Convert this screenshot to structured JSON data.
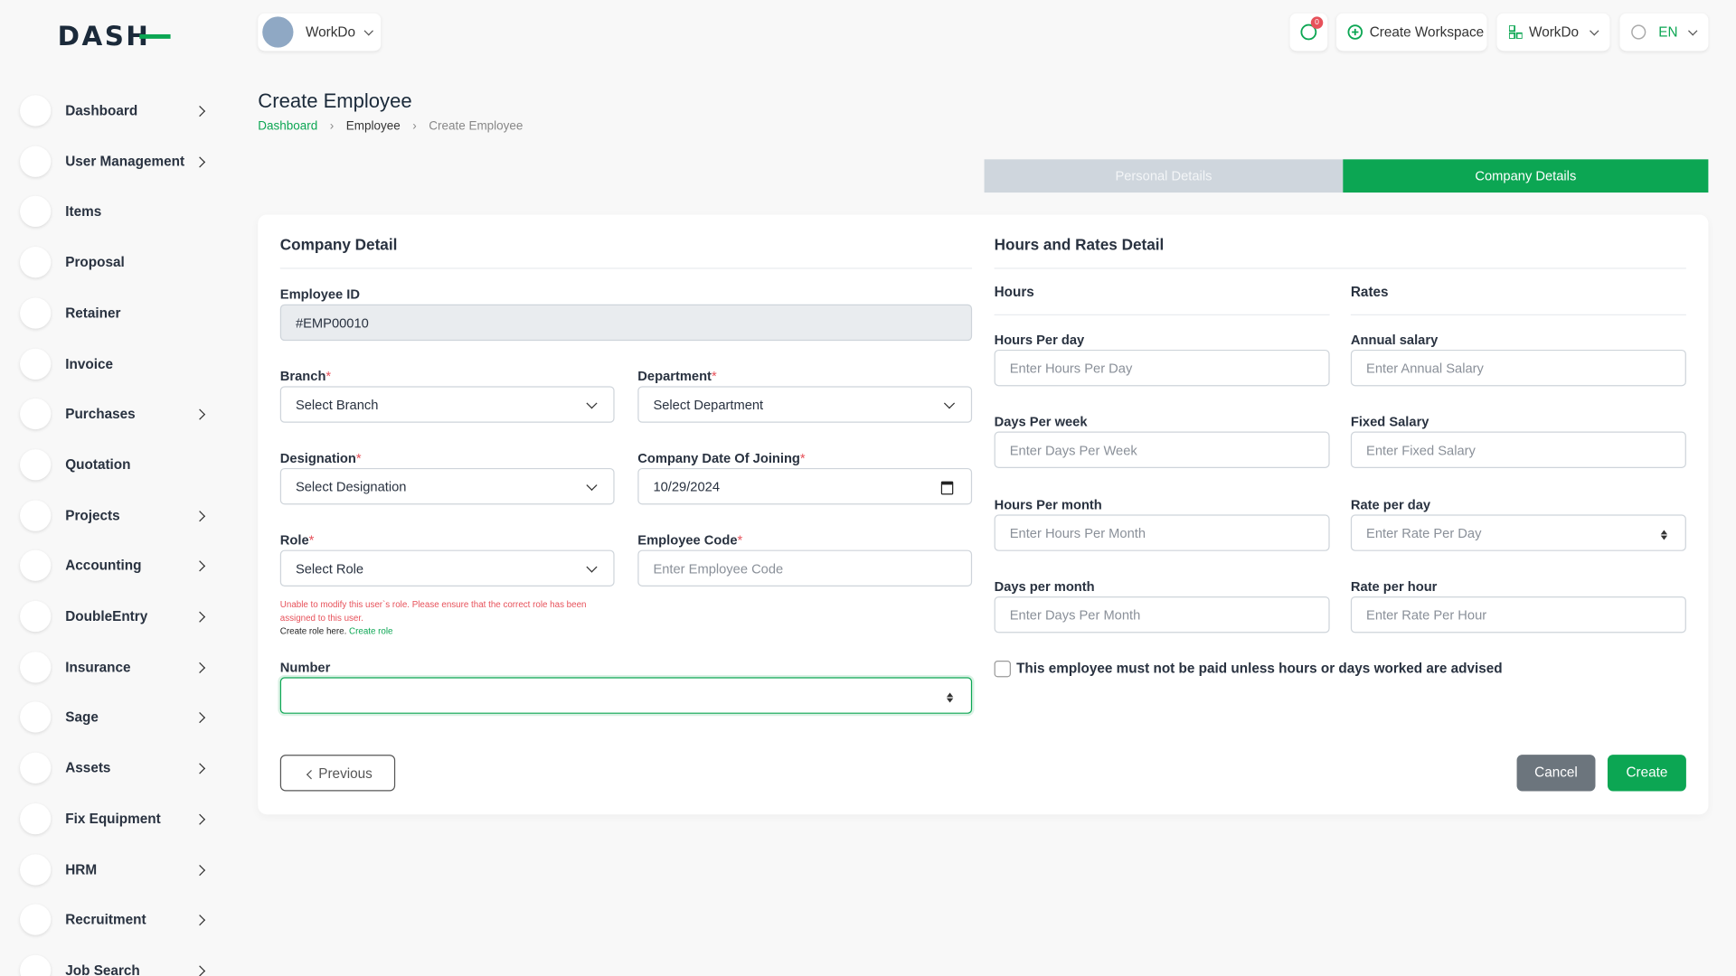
{
  "header": {
    "logo": "DASH",
    "workspace": "WorkDo",
    "notification_count": "0",
    "create_workspace": "Create Workspace",
    "user": "WorkDo",
    "language": "EN"
  },
  "sidebar": {
    "items": [
      {
        "label": "Dashboard",
        "has_submenu": true
      },
      {
        "label": "User Management",
        "has_submenu": true
      },
      {
        "label": "Items",
        "has_submenu": false
      },
      {
        "label": "Proposal",
        "has_submenu": false
      },
      {
        "label": "Retainer",
        "has_submenu": false
      },
      {
        "label": "Invoice",
        "has_submenu": false
      },
      {
        "label": "Purchases",
        "has_submenu": true
      },
      {
        "label": "Quotation",
        "has_submenu": false
      },
      {
        "label": "Projects",
        "has_submenu": true
      },
      {
        "label": "Accounting",
        "has_submenu": true
      },
      {
        "label": "DoubleEntry",
        "has_submenu": true
      },
      {
        "label": "Insurance",
        "has_submenu": true
      },
      {
        "label": "Sage",
        "has_submenu": true
      },
      {
        "label": "Assets",
        "has_submenu": true
      },
      {
        "label": "Fix Equipment",
        "has_submenu": true
      },
      {
        "label": "HRM",
        "has_submenu": true
      },
      {
        "label": "Recruitment",
        "has_submenu": true
      },
      {
        "label": "Job Search",
        "has_submenu": true
      }
    ]
  },
  "page": {
    "title": "Create Employee",
    "breadcrumb": [
      "Dashboard",
      "Employee",
      "Create Employee"
    ],
    "tabs": [
      "Personal Details",
      "Company Details"
    ]
  },
  "company_detail": {
    "title": "Company Detail",
    "fields": [
      {
        "label": "Employee ID",
        "kind": "readonly",
        "value": "#EMP00010"
      },
      {
        "label": "Branch",
        "required_mark": "*",
        "kind": "select",
        "value": "Select Branch"
      },
      {
        "label": "Department",
        "required_mark": "*",
        "kind": "select",
        "value": "Select Department"
      },
      {
        "label": "Designation",
        "required_mark": "*",
        "kind": "select",
        "value": "Select Designation"
      },
      {
        "label": "Company Date Of Joining",
        "required_mark": "*",
        "kind": "date",
        "value": "10/29/2024"
      },
      {
        "label": "Role",
        "required_mark": "*",
        "kind": "select",
        "value": "Select Role"
      },
      {
        "label": "Employee Code",
        "required_mark": "*",
        "kind": "text",
        "placeholder": "Enter Employee Code"
      },
      {
        "label": "Number",
        "kind": "number",
        "focused": true
      }
    ],
    "role_note": {
      "error": "Unable to modify this user`s role. Please ensure that the correct role has been assigned to this user.",
      "hint": "Create role here.",
      "link": "Create role"
    }
  },
  "hours_rates": {
    "title": "Hours and Rates Detail",
    "hours": {
      "title": "Hours",
      "fields": [
        {
          "label": "Hours Per day",
          "kind": "text",
          "placeholder": "Enter Hours Per Day"
        },
        {
          "label": "Days Per week",
          "kind": "text",
          "placeholder": "Enter Days Per Week"
        },
        {
          "label": "Hours Per month",
          "kind": "text",
          "placeholder": "Enter Hours Per Month"
        },
        {
          "label": "Days per month",
          "kind": "text",
          "placeholder": "Enter Days Per Month"
        }
      ]
    },
    "rates": {
      "title": "Rates",
      "fields": [
        {
          "label": "Annual salary",
          "kind": "text",
          "placeholder": "Enter Annual Salary"
        },
        {
          "label": "Fixed Salary",
          "kind": "text",
          "placeholder": "Enter Fixed Salary"
        },
        {
          "label": "Rate per day",
          "kind": "number",
          "placeholder": "Enter Rate Per Day"
        },
        {
          "label": "Rate per hour",
          "kind": "text",
          "placeholder": "Enter Rate Per Hour"
        }
      ]
    },
    "checkbox": "This employee must not be paid unless hours or days worked are advised"
  },
  "buttons": {
    "previous": "Previous",
    "cancel": "Cancel",
    "create": "Create"
  }
}
